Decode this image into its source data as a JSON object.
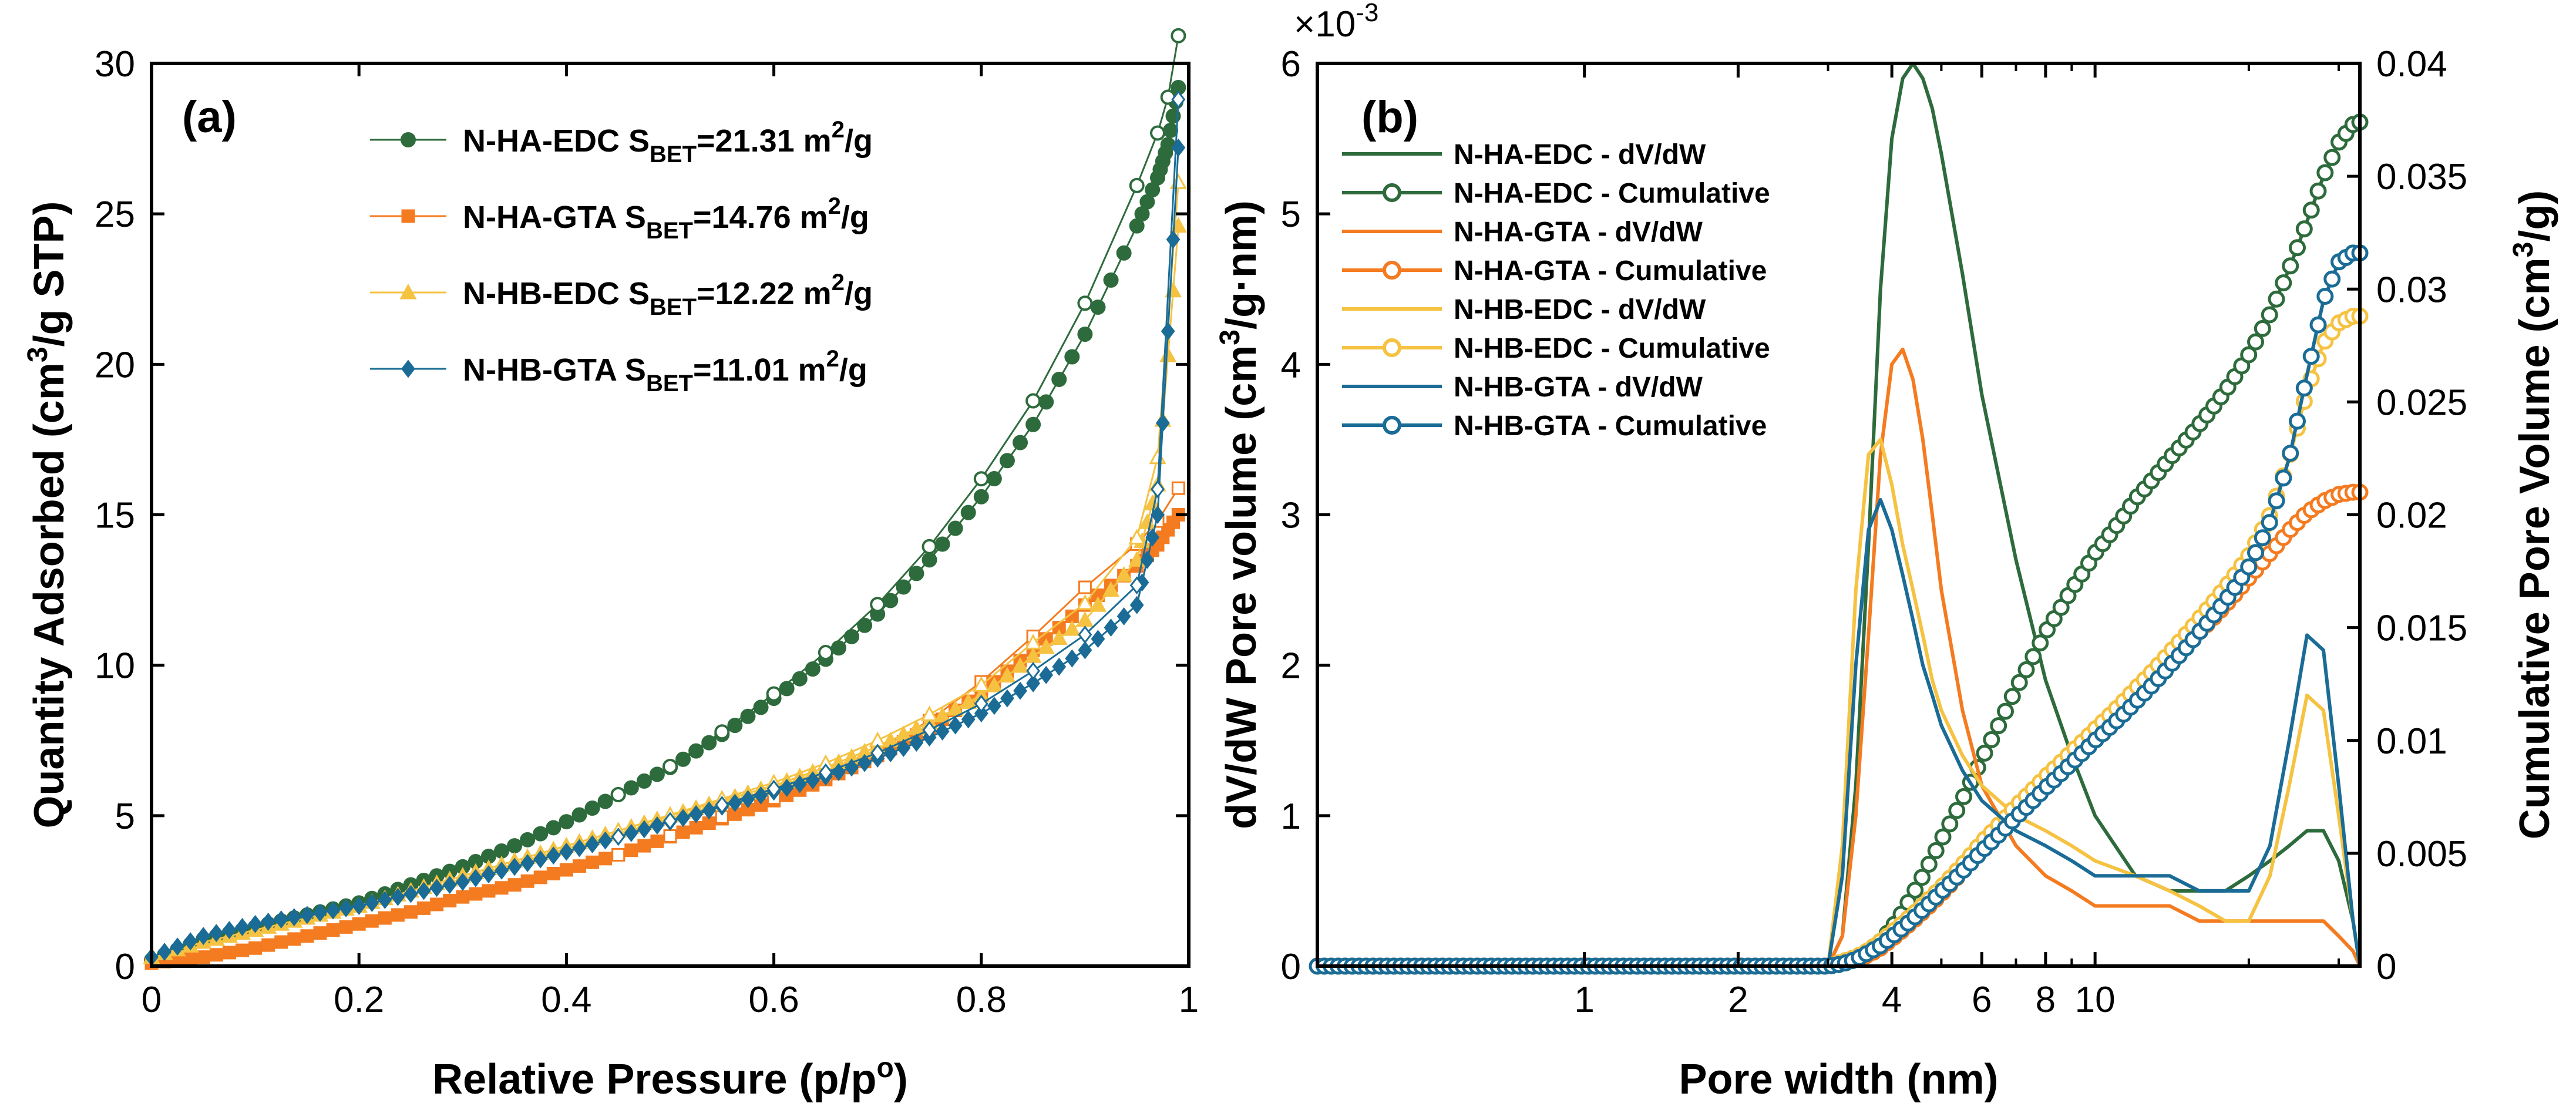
{
  "chart_data": [
    {
      "panel": "(a)",
      "type": "scatter",
      "xlabel": "Relative Pressure (p/p",
      "xlabel_sup": "o",
      "xlabel_end": ")",
      "ylabel": "Quantity Adsorbed (cm",
      "ylabel_sup": "3",
      "ylabel_end": "/g STP)",
      "xlim": [
        0,
        1
      ],
      "ylim": [
        0,
        30
      ],
      "xticks": [
        0,
        0.2,
        0.4,
        0.6,
        0.8,
        1
      ],
      "xtick_labels": [
        "0",
        "0.2",
        "0.4",
        "0.6",
        "0.8",
        "1"
      ],
      "yticks": [
        0,
        5,
        10,
        15,
        20,
        25,
        30
      ],
      "ytick_labels": [
        "0",
        "5",
        "10",
        "15",
        "20",
        "25",
        "30"
      ],
      "legend_position": "top-right",
      "series": [
        {
          "name": "N-HA-EDC",
          "label": "N-HA-EDC S",
          "sub": "BET",
          "value": "=21.31 m",
          "sup": "2",
          "unit": "/g",
          "color": "#2e6b3c",
          "marker": "circle",
          "x": [
            0.0,
            0.05,
            0.1,
            0.15,
            0.2,
            0.25,
            0.3,
            0.35,
            0.4,
            0.45,
            0.5,
            0.55,
            0.6,
            0.65,
            0.7,
            0.75,
            0.8,
            0.85,
            0.9,
            0.95,
            0.97,
            0.98,
            0.99
          ],
          "y": [
            0.2,
            0.9,
            1.3,
            1.7,
            2.1,
            2.7,
            3.3,
            4.0,
            4.8,
            5.7,
            6.6,
            7.7,
            8.9,
            10.2,
            11.7,
            13.5,
            15.6,
            18.0,
            21.0,
            24.6,
            26.2,
            27.3,
            29.2
          ]
        },
        {
          "name": "N-HA-GTA",
          "label": "N-HA-GTA S",
          "sub": "BET",
          "value": "=14.76 m",
          "sup": "2",
          "unit": "/g",
          "color": "#f47b20",
          "marker": "square",
          "x": [
            0.0,
            0.05,
            0.1,
            0.15,
            0.2,
            0.25,
            0.3,
            0.35,
            0.4,
            0.45,
            0.5,
            0.55,
            0.6,
            0.65,
            0.7,
            0.75,
            0.8,
            0.85,
            0.9,
            0.95,
            0.97,
            0.99
          ],
          "y": [
            0.1,
            0.3,
            0.6,
            1.0,
            1.4,
            1.8,
            2.3,
            2.7,
            3.2,
            3.7,
            4.3,
            4.9,
            5.5,
            6.2,
            7.0,
            7.9,
            9.1,
            10.5,
            12.0,
            13.3,
            14.0,
            15.0
          ]
        },
        {
          "name": "N-HB-EDC",
          "label": "N-HB-EDC S",
          "sub": "BET",
          "value": "=12.22 m",
          "sup": "2",
          "unit": "/g",
          "color": "#f5c242",
          "marker": "triangle",
          "x": [
            0.0,
            0.05,
            0.1,
            0.15,
            0.2,
            0.25,
            0.3,
            0.35,
            0.4,
            0.45,
            0.5,
            0.55,
            0.6,
            0.65,
            0.7,
            0.75,
            0.8,
            0.85,
            0.9,
            0.95,
            0.97,
            0.99
          ],
          "y": [
            0.3,
            0.8,
            1.2,
            1.6,
            2.0,
            2.5,
            3.0,
            3.5,
            4.0,
            4.5,
            5.0,
            5.5,
            6.0,
            6.6,
            7.3,
            8.1,
            9.0,
            10.3,
            11.5,
            13.5,
            16.0,
            24.6
          ]
        },
        {
          "name": "N-HB-GTA",
          "label": "N-HB-GTA S",
          "sub": "BET",
          "value": "=11.01 m",
          "sup": "2",
          "unit": "/g",
          "color": "#1a6c96",
          "marker": "diamond",
          "x": [
            0.0,
            0.05,
            0.1,
            0.15,
            0.2,
            0.25,
            0.3,
            0.35,
            0.4,
            0.45,
            0.5,
            0.55,
            0.6,
            0.65,
            0.7,
            0.75,
            0.8,
            0.85,
            0.9,
            0.95,
            0.97,
            0.99
          ],
          "y": [
            0.3,
            1.0,
            1.4,
            1.7,
            2.0,
            2.4,
            2.8,
            3.3,
            3.8,
            4.3,
            4.8,
            5.3,
            5.8,
            6.3,
            6.9,
            7.6,
            8.4,
            9.4,
            10.5,
            12.0,
            15.0,
            27.2
          ]
        }
      ]
    },
    {
      "panel": "(b)",
      "type": "line",
      "xlabel": "Pore width (nm)",
      "ylabel": "dV/dW Pore volume (cm",
      "ylabel_sup": "3",
      "ylabel_end": "/g·nm)",
      "y2label": "Cumulative Pore Volume (cm",
      "y2label_sup": "3",
      "y2label_end": "/g)",
      "xscale": "log",
      "xlim": [
        0.3,
        33
      ],
      "ylim": [
        0,
        0.006
      ],
      "y_multiplier": "×10",
      "y_multiplier_exp": "-3",
      "yticks": [
        0,
        1,
        2,
        3,
        4,
        5,
        6
      ],
      "ytick_labels": [
        "0",
        "1",
        "2",
        "3",
        "4",
        "5",
        "6"
      ],
      "y2lim": [
        0,
        0.04
      ],
      "y2ticks": [
        0,
        0.005,
        0.01,
        0.015,
        0.02,
        0.025,
        0.03,
        0.035,
        0.04
      ],
      "y2tick_labels": [
        "0",
        "0.005",
        "0.01",
        "0.015",
        "0.02",
        "0.025",
        "0.03",
        "0.035",
        "0.04"
      ],
      "xticks": [
        1,
        2,
        4,
        6,
        8,
        10
      ],
      "xtick_labels": [
        "1",
        "2",
        "4",
        "6",
        "8",
        "10"
      ],
      "legend_position": "top-left",
      "x": [
        0.3,
        0.5,
        1,
        2,
        3,
        3.2,
        3.4,
        3.6,
        3.8,
        4,
        4.2,
        4.4,
        4.6,
        4.8,
        5,
        5.5,
        6,
        7,
        8,
        9,
        10,
        12,
        14,
        16,
        18,
        20,
        22,
        24,
        26,
        28,
        30,
        32,
        33
      ],
      "series": [
        {
          "name": "N-HA-EDC - dV/dW",
          "axis": "left",
          "color": "#2e6b3c",
          "y": [
            0,
            0,
            0,
            0,
            0,
            0.0002,
            0.0012,
            0.0028,
            0.0045,
            0.0055,
            0.0059,
            0.006,
            0.0059,
            0.0057,
            0.0054,
            0.0046,
            0.0038,
            0.0027,
            0.0019,
            0.0014,
            0.001,
            0.0006,
            0.0005,
            0.0005,
            0.0005,
            0.0006,
            0.0007,
            0.0008,
            0.0009,
            0.0009,
            0.0007,
            0.0003,
            0.0
          ]
        },
        {
          "name": "N-HA-EDC - Cumulative",
          "axis": "right",
          "color": "#2e6b3c",
          "y": [
            0,
            0,
            0,
            0,
            0,
            0.0001,
            0.0003,
            0.0006,
            0.0011,
            0.0017,
            0.0024,
            0.0032,
            0.004,
            0.0048,
            0.0056,
            0.0074,
            0.0092,
            0.0123,
            0.0148,
            0.0167,
            0.0183,
            0.0207,
            0.0225,
            0.024,
            0.0255,
            0.0271,
            0.0289,
            0.0309,
            0.033,
            0.035,
            0.0365,
            0.0373,
            0.0374
          ]
        },
        {
          "name": "N-HA-GTA - dV/dW",
          "axis": "left",
          "color": "#f47b20",
          "y": [
            0,
            0,
            0,
            0,
            0,
            0.0002,
            0.001,
            0.0022,
            0.0034,
            0.004,
            0.0041,
            0.0039,
            0.0035,
            0.003,
            0.0025,
            0.0017,
            0.0012,
            0.0008,
            0.0006,
            0.0005,
            0.0004,
            0.0004,
            0.0004,
            0.0003,
            0.0003,
            0.0003,
            0.0003,
            0.0003,
            0.0003,
            0.0003,
            0.0002,
            0.0001,
            0.0
          ]
        },
        {
          "name": "N-HA-GTA - Cumulative",
          "axis": "right",
          "color": "#f47b20",
          "y": [
            0,
            0,
            0,
            0,
            0,
            0.0001,
            0.0003,
            0.0005,
            0.0008,
            0.0012,
            0.0016,
            0.002,
            0.0024,
            0.0028,
            0.0032,
            0.0042,
            0.0052,
            0.0068,
            0.0082,
            0.0094,
            0.0104,
            0.0121,
            0.0135,
            0.0148,
            0.016,
            0.0172,
            0.0183,
            0.0193,
            0.0201,
            0.0206,
            0.0209,
            0.021,
            0.021
          ]
        },
        {
          "name": "N-HB-EDC - dV/dW",
          "axis": "left",
          "color": "#f5c242",
          "y": [
            0,
            0,
            0,
            0,
            0,
            0.0008,
            0.0025,
            0.0034,
            0.0035,
            0.0032,
            0.0028,
            0.0025,
            0.0022,
            0.0019,
            0.0017,
            0.0014,
            0.0012,
            0.001,
            0.0009,
            0.0008,
            0.0007,
            0.0006,
            0.0005,
            0.0004,
            0.0003,
            0.0003,
            0.0006,
            0.0012,
            0.0018,
            0.0017,
            0.001,
            0.0003,
            0.0
          ]
        },
        {
          "name": "N-HB-EDC - Cumulative",
          "axis": "right",
          "color": "#f5c242",
          "y": [
            0,
            0,
            0,
            0,
            0,
            0.0002,
            0.0004,
            0.0007,
            0.0011,
            0.0015,
            0.0019,
            0.0023,
            0.0027,
            0.0031,
            0.0035,
            0.0045,
            0.0055,
            0.0071,
            0.0084,
            0.0095,
            0.0105,
            0.0123,
            0.0139,
            0.0154,
            0.0168,
            0.0182,
            0.02,
            0.0225,
            0.0255,
            0.0276,
            0.0285,
            0.0288,
            0.0288
          ]
        },
        {
          "name": "N-HB-GTA - dV/dW",
          "axis": "left",
          "color": "#1a6c96",
          "y": [
            0,
            0,
            0,
            0,
            0,
            0.0006,
            0.002,
            0.0029,
            0.0031,
            0.0029,
            0.0026,
            0.0023,
            0.002,
            0.0018,
            0.0016,
            0.0013,
            0.0011,
            0.0009,
            0.0008,
            0.0007,
            0.0006,
            0.0006,
            0.0006,
            0.0005,
            0.0005,
            0.0005,
            0.0008,
            0.0015,
            0.0022,
            0.0021,
            0.0012,
            0.0003,
            0.0
          ]
        },
        {
          "name": "N-HB-GTA - Cumulative",
          "axis": "right",
          "color": "#1a6c96",
          "y": [
            0,
            0,
            0,
            0,
            0,
            0.0001,
            0.0003,
            0.0006,
            0.0009,
            0.0013,
            0.0017,
            0.0021,
            0.0025,
            0.0029,
            0.0033,
            0.0042,
            0.0051,
            0.0066,
            0.0079,
            0.009,
            0.01,
            0.0117,
            0.0133,
            0.0148,
            0.0162,
            0.0177,
            0.0197,
            0.0225,
            0.0262,
            0.0295,
            0.0312,
            0.0316,
            0.0316
          ]
        }
      ]
    }
  ]
}
